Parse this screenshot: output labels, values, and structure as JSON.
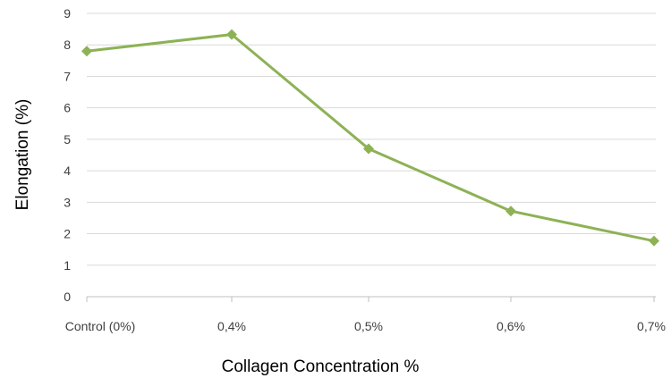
{
  "chart_data": {
    "type": "line",
    "title": "",
    "xlabel": "Collagen Concentration %",
    "ylabel": "Elongation (%)",
    "categories": [
      "Control (0%)",
      "0,4%",
      "0,5%",
      "0,6%",
      "0,7%"
    ],
    "series": [
      {
        "values": [
          7.8,
          8.33,
          4.7,
          2.72,
          1.77
        ]
      }
    ],
    "ylim": [
      0,
      9
    ],
    "yticks": [
      "0",
      "1",
      "2",
      "3",
      "4",
      "5",
      "6",
      "7",
      "8",
      "9"
    ],
    "grid": true,
    "legend": "none",
    "colors": {
      "series": "#8db255",
      "grid": "#d9d9d9",
      "axis": "#bfbfbf"
    }
  }
}
